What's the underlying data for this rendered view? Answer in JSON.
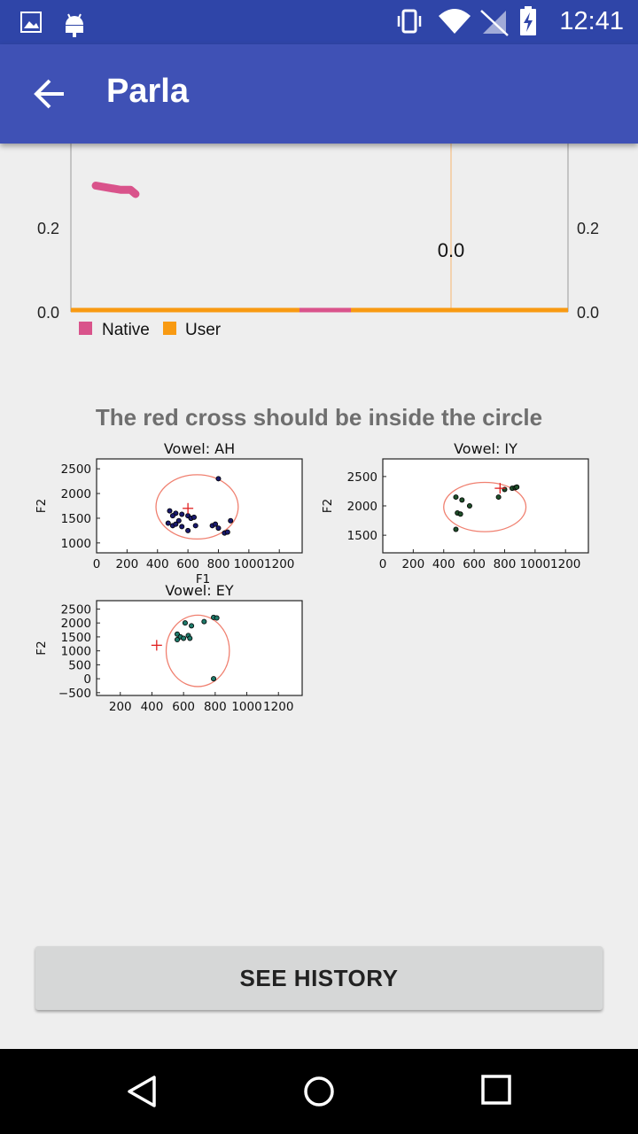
{
  "status_bar": {
    "time": "12:41",
    "icons": [
      "image-icon",
      "android-icon",
      "vibrate-icon",
      "wifi-icon",
      "no-sim-icon",
      "battery-charging-icon"
    ]
  },
  "app_bar": {
    "title": "Parla",
    "back_icon": "arrow-back-icon"
  },
  "instruction": "The red cross should be inside the circle",
  "history_button": {
    "label": "SEE HISTORY"
  },
  "nav_bar": {
    "icons": [
      "back-triangle-icon",
      "home-circle-icon",
      "recents-square-icon"
    ]
  },
  "colors": {
    "primary": "#3f51b5",
    "primary_dark": "#2f45a8",
    "native": "#d9538b",
    "user": "#f89a12"
  },
  "chart_data": [
    {
      "type": "line",
      "y_ticks_left": [
        "0.0",
        "0.2"
      ],
      "y_ticks_right": [
        "0.0",
        "0.2"
      ],
      "ylim": [
        0,
        0.4
      ],
      "annotation": "0.0",
      "legend": {
        "placement": "bottom-left",
        "entries": [
          "Native",
          "User"
        ]
      },
      "series": [
        {
          "name": "Native",
          "values": [
            [
              0.05,
              0.3
            ],
            [
              0.1,
              0.29
            ],
            [
              0.1,
              0.29
            ],
            [
              0.12,
              0.29
            ],
            [
              0.13,
              0.28
            ]
          ]
        },
        {
          "name": "User",
          "values": [
            [
              0,
              0
            ],
            [
              1,
              0
            ]
          ]
        }
      ]
    },
    {
      "type": "scatter",
      "title": "Vowel: AH",
      "xlabel": "F1",
      "ylabel": "F2",
      "x_ticks": [
        "0",
        "200",
        "400",
        "600",
        "800",
        "1000",
        "1200"
      ],
      "y_ticks": [
        "1000",
        "1500",
        "2000",
        "2500"
      ],
      "xlim": [
        0,
        1350
      ],
      "ylim": [
        800,
        2700
      ],
      "cross": [
        600,
        1700
      ],
      "ellipse": {
        "cx": 660,
        "cy": 1730,
        "rx": 270,
        "ry": 650
      },
      "points": [
        [
          480,
          1650
        ],
        [
          520,
          1600
        ],
        [
          500,
          1550
        ],
        [
          560,
          1580
        ],
        [
          600,
          1550
        ],
        [
          620,
          1500
        ],
        [
          540,
          1450
        ],
        [
          470,
          1400
        ],
        [
          500,
          1350
        ],
        [
          520,
          1380
        ],
        [
          560,
          1330
        ],
        [
          600,
          1250
        ],
        [
          650,
          1350
        ],
        [
          620,
          1500
        ],
        [
          640,
          1520
        ],
        [
          760,
          1350
        ],
        [
          780,
          1380
        ],
        [
          800,
          1300
        ],
        [
          840,
          1200
        ],
        [
          860,
          1220
        ],
        [
          880,
          1450
        ],
        [
          800,
          2300
        ]
      ]
    },
    {
      "type": "scatter",
      "title": "Vowel: IY",
      "ylabel": "F2",
      "x_ticks": [
        "0",
        "200",
        "400",
        "600",
        "800",
        "1000",
        "1200"
      ],
      "y_ticks": [
        "1500",
        "2000",
        "2500"
      ],
      "xlim": [
        0,
        1350
      ],
      "ylim": [
        1200,
        2800
      ],
      "cross": [
        770,
        2300
      ],
      "ellipse": {
        "cx": 670,
        "cy": 1980,
        "rx": 270,
        "ry": 420
      },
      "points": [
        [
          480,
          2150
        ],
        [
          520,
          2100
        ],
        [
          570,
          2000
        ],
        [
          490,
          1880
        ],
        [
          510,
          1860
        ],
        [
          480,
          1600
        ],
        [
          760,
          2150
        ],
        [
          800,
          2280
        ],
        [
          850,
          2300
        ],
        [
          870,
          2310
        ],
        [
          880,
          2320
        ]
      ]
    },
    {
      "type": "scatter",
      "title": "Vowel: EY",
      "ylabel": "F2",
      "x_ticks": [
        "200",
        "400",
        "600",
        "800",
        "1000",
        "1200"
      ],
      "y_ticks": [
        "−500",
        "0",
        "500",
        "1000",
        "1500",
        "2000",
        "2500"
      ],
      "xlim": [
        50,
        1350
      ],
      "ylim": [
        -600,
        2800
      ],
      "cross": [
        430,
        1200
      ],
      "ellipse": {
        "cx": 690,
        "cy": 1000,
        "rx": 200,
        "ry": 1280
      },
      "points": [
        [
          560,
          1600
        ],
        [
          580,
          1500
        ],
        [
          560,
          1400
        ],
        [
          600,
          1450
        ],
        [
          630,
          1550
        ],
        [
          640,
          1450
        ],
        [
          610,
          2000
        ],
        [
          650,
          1900
        ],
        [
          730,
          2050
        ],
        [
          790,
          2200
        ],
        [
          810,
          2180
        ],
        [
          790,
          0
        ]
      ]
    }
  ]
}
